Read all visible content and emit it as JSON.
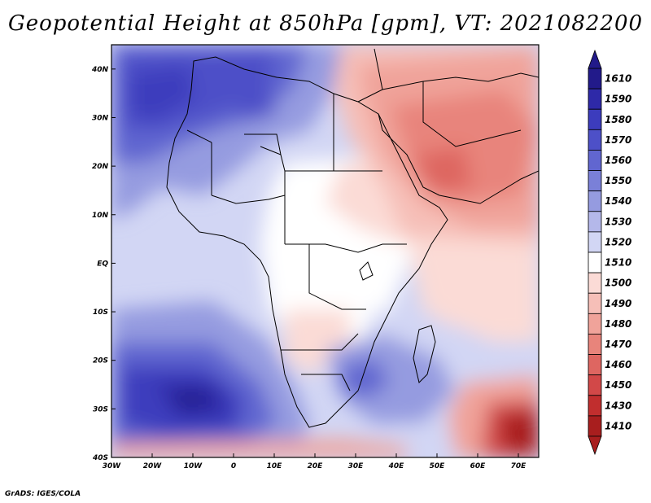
{
  "title": "Geopotential Height at 850hPa [gpm], VT: 2021082200",
  "footer": "GrADS: IGES/COLA",
  "map": {
    "lon_range": [
      -30,
      75
    ],
    "lat_range": [
      -40,
      45
    ],
    "lon_ticks": [
      "30W",
      "20W",
      "10W",
      "0",
      "10E",
      "20E",
      "30E",
      "40E",
      "50E",
      "60E",
      "70E"
    ],
    "lat_ticks": [
      "40N",
      "30N",
      "20N",
      "10N",
      "EQ",
      "10S",
      "20S",
      "30S",
      "40S"
    ]
  },
  "colorbar": {
    "labels": [
      "1610",
      "1590",
      "1580",
      "1570",
      "1560",
      "1550",
      "1540",
      "1530",
      "1520",
      "1510",
      "1500",
      "1490",
      "1480",
      "1470",
      "1460",
      "1450",
      "1430",
      "1410"
    ],
    "colors": [
      "#221a8a",
      "#2e29a8",
      "#3c3cbd",
      "#4d50c8",
      "#6166d0",
      "#7a80d8",
      "#959be0",
      "#b4b8ea",
      "#d2d6f4",
      "#ffffff",
      "#fbdbd6",
      "#f6bfb8",
      "#f0a39a",
      "#e8847b",
      "#de6661",
      "#d24848",
      "#c12e2e",
      "#a81e1e"
    ]
  }
}
